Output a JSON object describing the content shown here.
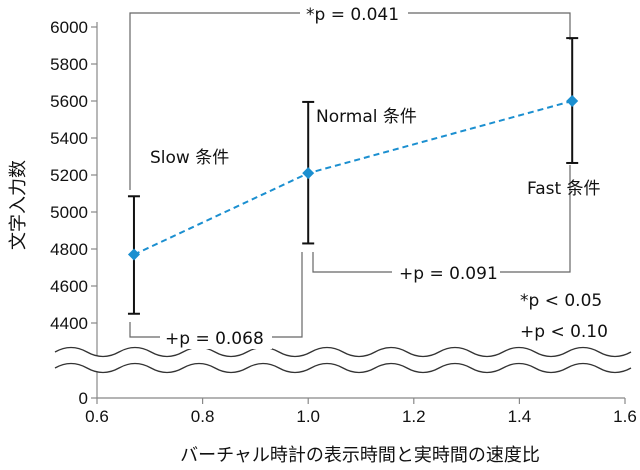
{
  "chart_data": {
    "type": "line",
    "xlabel": "バーチャル時計の表示時間と実時間の速度比",
    "ylabel": "文字入力数",
    "xlim": [
      0.6,
      1.6
    ],
    "x_ticks": [
      "0.6",
      "0.8",
      "1.0",
      "1.2",
      "1.4",
      "1.6"
    ],
    "y_ticks": [
      "0",
      "4400",
      "4600",
      "4800",
      "5000",
      "5200",
      "5400",
      "5600",
      "5800",
      "6000"
    ],
    "ylim_upper": [
      4400,
      6000
    ],
    "axis_break": true,
    "color": "#1b8fd0",
    "series": [
      {
        "name": "文字入力数",
        "x": [
          0.67,
          1.0,
          1.5
        ],
        "y": [
          4770,
          5210,
          5600
        ],
        "err_low": [
          4450,
          4830,
          5265
        ],
        "err_high": [
          5085,
          5595,
          5940
        ]
      }
    ],
    "point_labels": [
      "Slow 条件",
      "Normal 条件",
      "Fast 条件"
    ],
    "comparisons": [
      {
        "from": 0.67,
        "to": 1.5,
        "label": "*p = 0.041"
      },
      {
        "from": 1.0,
        "to": 1.5,
        "label": "+p = 0.091"
      },
      {
        "from": 0.67,
        "to": 1.0,
        "label": "+p = 0.068"
      }
    ],
    "legend": [
      "*p < 0.05",
      "+p < 0.10"
    ]
  }
}
